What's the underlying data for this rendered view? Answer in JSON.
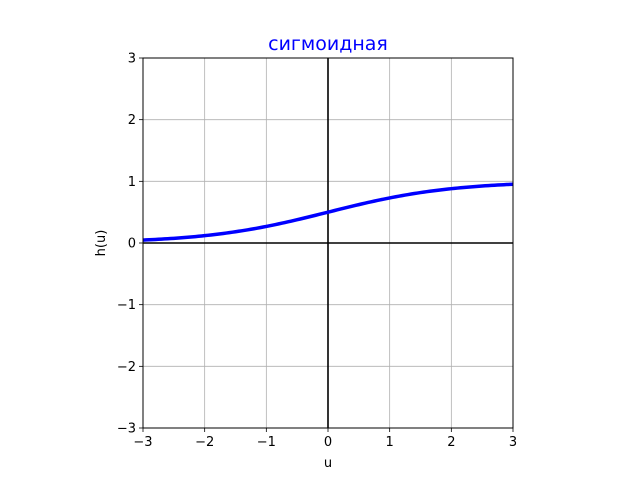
{
  "chart_data": {
    "type": "line",
    "title": "сигмоидная",
    "xlabel": "u",
    "ylabel": "h(u)",
    "xlim": [
      -3,
      3
    ],
    "ylim": [
      -3,
      3
    ],
    "grid": true,
    "x_ticks": [
      -3,
      -2,
      -1,
      0,
      1,
      2,
      3
    ],
    "y_ticks": [
      -3,
      -2,
      -1,
      0,
      1,
      2,
      3
    ],
    "x_tick_labels": [
      "−3",
      "−2",
      "−1",
      "0",
      "1",
      "2",
      "3"
    ],
    "y_tick_labels": [
      "−3",
      "−2",
      "−1",
      "0",
      "1",
      "2",
      "3"
    ],
    "series": [
      {
        "function": "1/(1+exp(-u))",
        "color": "#0000ff",
        "x": [
          -3.0,
          -2.5,
          -2.0,
          -1.5,
          -1.0,
          -0.5,
          0.0,
          0.5,
          1.0,
          1.5,
          2.0,
          2.5,
          3.0
        ],
        "y": [
          0.047,
          0.076,
          0.119,
          0.182,
          0.269,
          0.378,
          0.5,
          0.622,
          0.731,
          0.818,
          0.881,
          0.924,
          0.953
        ]
      }
    ],
    "reference_lines": [
      {
        "axis": "x",
        "value": 0,
        "color": "#000000"
      },
      {
        "axis": "y",
        "value": 0,
        "color": "#000000"
      }
    ],
    "colors": {
      "title": "#0000ff",
      "grid": "#b0b0b0",
      "axes": "#000000"
    }
  }
}
